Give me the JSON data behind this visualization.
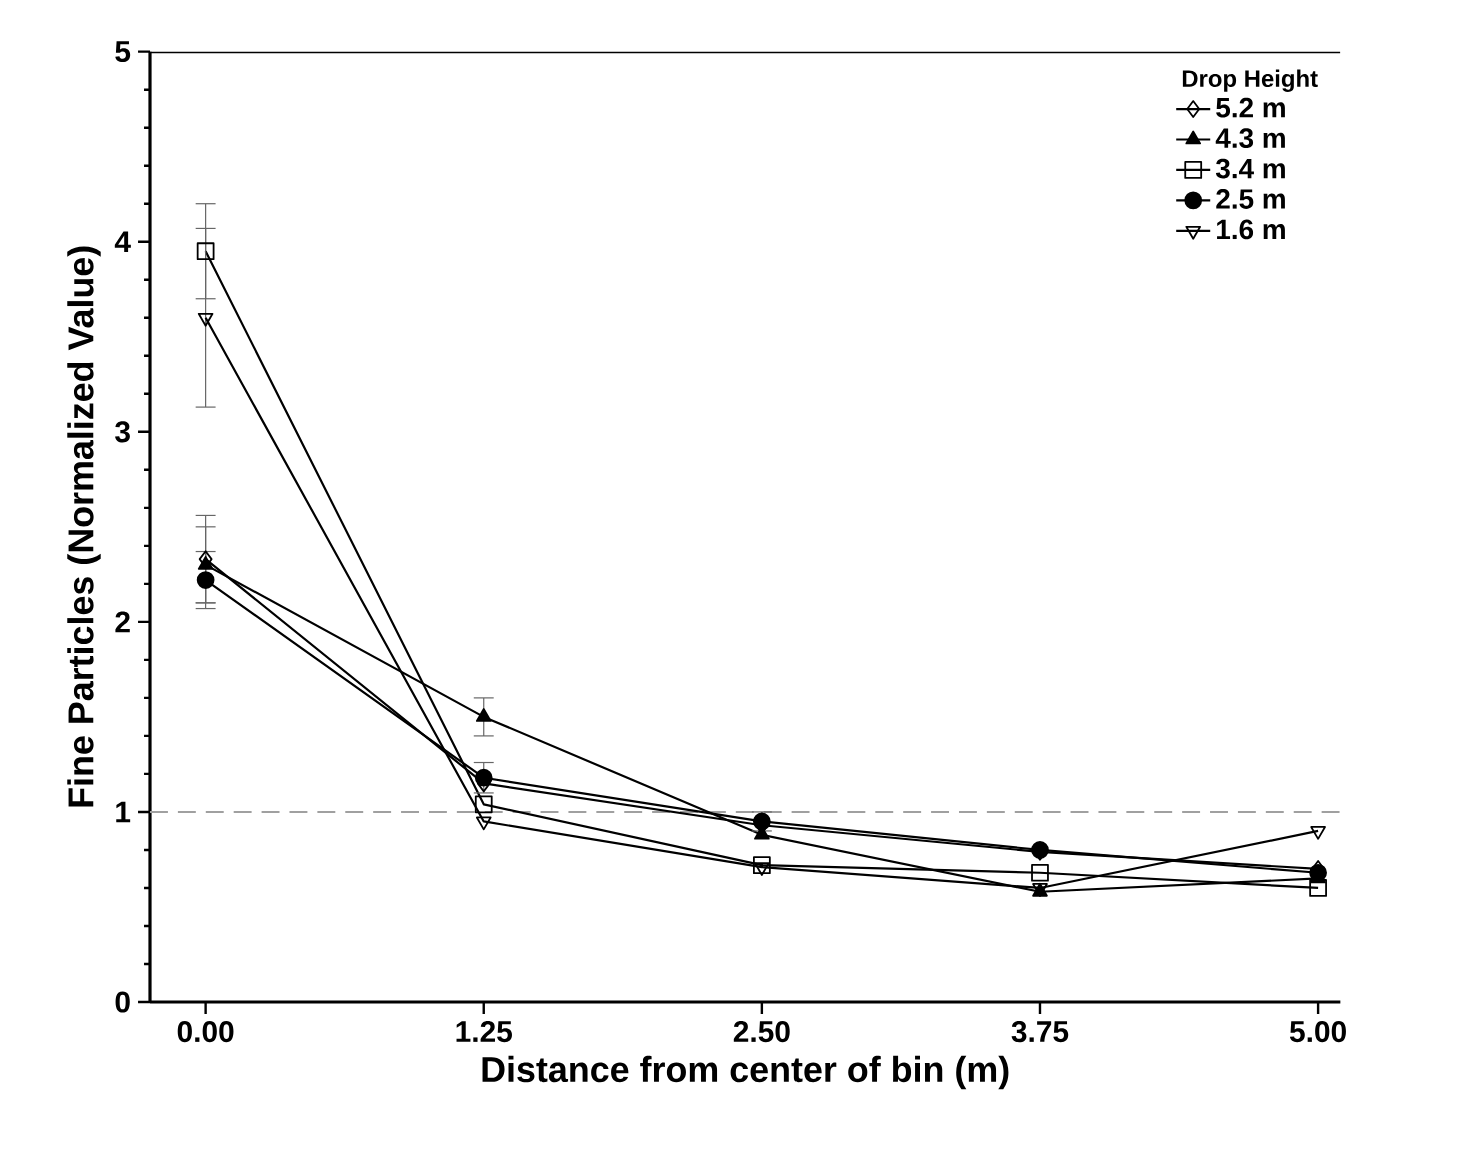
{
  "chart_data": {
    "type": "line",
    "xlabel": "Distance from center of bin (m)",
    "ylabel": "Fine Particles (Normalized Value)",
    "legend_title": "Drop Height",
    "legend": "top right",
    "grid": false,
    "x": [
      0,
      1.25,
      2.5,
      3.75,
      5
    ],
    "xlim": [
      -0.25,
      5.1
    ],
    "xticks": [
      {
        "value": 0,
        "label": "0.00"
      },
      {
        "value": 1.25,
        "label": "1.25"
      },
      {
        "value": 2.5,
        "label": "2.50"
      },
      {
        "value": 3.75,
        "label": "3.75"
      },
      {
        "value": 5,
        "label": "5.00"
      }
    ],
    "ylim": [
      0,
      5
    ],
    "yticks": [
      0,
      1,
      2,
      3,
      4,
      5
    ],
    "line_style": "solid",
    "ref_lines": [
      {
        "axis": "y",
        "value": 1,
        "color": "#a0a0a0",
        "line_style": "dashed"
      }
    ],
    "series": [
      {
        "name": "5.2 m",
        "color": "#000000",
        "marker": "diamond",
        "values": [
          2.33,
          1.15,
          0.93,
          0.79,
          0.7
        ],
        "errors": [
          0.23,
          null,
          null,
          null,
          null
        ]
      },
      {
        "name": "4.3 m",
        "color": "#000000",
        "marker": "triangle",
        "values": [
          2.3,
          1.5,
          0.88,
          0.58,
          0.65
        ],
        "errors": [
          0.2,
          0.1,
          null,
          null,
          null
        ]
      },
      {
        "name": "3.4 m",
        "color": "#000000",
        "marker": "square",
        "values": [
          3.95,
          1.04,
          0.72,
          0.68,
          0.6
        ],
        "errors": [
          0.25,
          null,
          null,
          null,
          null
        ]
      },
      {
        "name": "2.5 m",
        "color": "#000000",
        "marker": "circle",
        "values": [
          2.22,
          1.18,
          0.95,
          0.8,
          0.68
        ],
        "errors": [
          0.15,
          0.08,
          0.05,
          null,
          null
        ]
      },
      {
        "name": "1.6 m",
        "color": "#000000",
        "marker": "triangle",
        "values": [
          3.6,
          0.95,
          0.71,
          0.6,
          0.9
        ],
        "errors": [
          0.47,
          null,
          null,
          null,
          null
        ]
      }
    ]
  }
}
